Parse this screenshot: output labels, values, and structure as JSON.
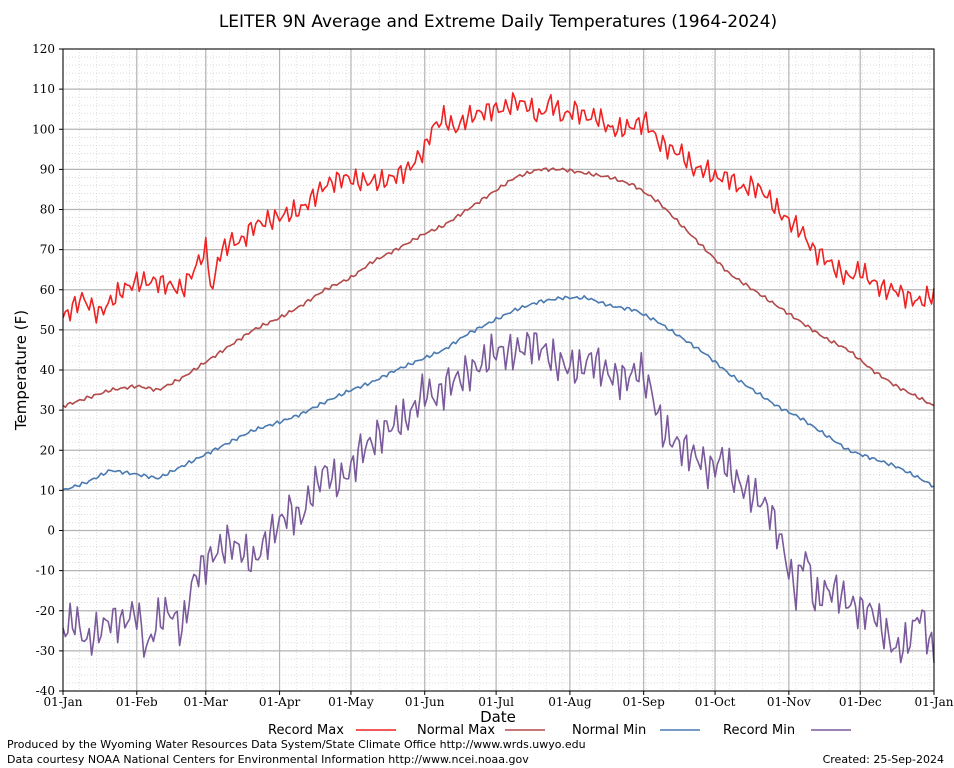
{
  "chart_data": {
    "type": "line",
    "title": "LEITER 9N Average and Extreme Daily Temperatures (1964-2024)",
    "xlabel": "Date",
    "ylabel": "Temperature (F)",
    "ylim": [
      -40,
      120
    ],
    "xlim": [
      0,
      366
    ],
    "grid": true,
    "legend_position": "bottom",
    "y_ticks": [
      "120",
      "110",
      "100",
      "90",
      "80",
      "70",
      "60",
      "50",
      "40",
      "30",
      "20",
      "10",
      "0",
      "-10",
      "-20",
      "-30",
      "-40"
    ],
    "y_tick_values": [
      120,
      110,
      100,
      90,
      80,
      70,
      60,
      50,
      40,
      30,
      20,
      10,
      0,
      -10,
      -20,
      -30,
      -40
    ],
    "x_tick_labels": [
      "01-Jan",
      "01-Feb",
      "01-Mar",
      "01-Apr",
      "01-May",
      "01-Jun",
      "01-Jul",
      "01-Aug",
      "01-Sep",
      "01-Oct",
      "01-Nov",
      "01-Dec",
      "01-Jan"
    ],
    "x_tick_days": [
      0,
      31,
      60,
      91,
      121,
      152,
      182,
      213,
      244,
      274,
      305,
      335,
      366
    ],
    "series": [
      {
        "name": "Record Max",
        "color": "#ee2222",
        "x": [
          0,
          8,
          15,
          25,
          31,
          40,
          50,
          55,
          60,
          63,
          65,
          70,
          75,
          80,
          90,
          100,
          110,
          118,
          125,
          135,
          145,
          152,
          155,
          160,
          165,
          170,
          175,
          180,
          185,
          190,
          195,
          200,
          205,
          210,
          215,
          220,
          225,
          230,
          235,
          240,
          245,
          250,
          255,
          260,
          265,
          270,
          274,
          280,
          285,
          290,
          295,
          300,
          305,
          310,
          315,
          320,
          325,
          330,
          335,
          340,
          345,
          350,
          355,
          360,
          366
        ],
        "values": [
          53,
          58,
          54,
          60,
          62,
          62,
          60,
          65,
          70,
          59,
          68,
          72,
          72,
          76,
          78,
          80,
          86,
          88,
          87,
          87,
          90,
          95,
          100,
          103,
          100,
          103,
          104,
          105,
          105,
          107,
          106,
          103,
          107,
          103,
          105,
          103,
          103,
          100,
          100,
          101,
          102,
          97,
          95,
          94,
          90,
          90,
          88,
          88,
          85,
          86,
          84,
          80,
          77,
          75,
          70,
          68,
          65,
          63,
          65,
          62,
          60,
          60,
          58,
          57,
          59
        ]
      },
      {
        "name": "Normal Max",
        "color": "#b24a4a",
        "x": [
          0,
          10,
          20,
          31,
          40,
          50,
          60,
          70,
          80,
          91,
          100,
          110,
          121,
          130,
          140,
          152,
          160,
          170,
          180,
          190,
          200,
          210,
          220,
          230,
          240,
          250,
          260,
          270,
          280,
          290,
          300,
          310,
          320,
          330,
          340,
          350,
          360,
          366
        ],
        "values": [
          31,
          33,
          35,
          36,
          35,
          38,
          42,
          46,
          50,
          53,
          56,
          60,
          63,
          67,
          70,
          74,
          76,
          80,
          84,
          88,
          90,
          90,
          89,
          88,
          86,
          82,
          76,
          70,
          64,
          60,
          56,
          52,
          48,
          45,
          40,
          36,
          33,
          31
        ]
      },
      {
        "name": "Normal Min",
        "color": "#4a7ab0",
        "x": [
          0,
          10,
          20,
          31,
          40,
          50,
          60,
          70,
          80,
          91,
          100,
          110,
          121,
          130,
          140,
          152,
          160,
          170,
          180,
          190,
          200,
          210,
          220,
          230,
          240,
          250,
          260,
          270,
          280,
          290,
          300,
          310,
          320,
          330,
          340,
          350,
          360,
          366
        ],
        "values": [
          10,
          12,
          15,
          14,
          13,
          16,
          19,
          22,
          25,
          27,
          29,
          32,
          35,
          37,
          40,
          43,
          45,
          49,
          52,
          55,
          57,
          58,
          58,
          56,
          55,
          52,
          48,
          44,
          39,
          35,
          31,
          28,
          24,
          20,
          18,
          16,
          13,
          11
        ]
      },
      {
        "name": "Record Min",
        "color": "#7a5a9a",
        "x": [
          0,
          5,
          10,
          15,
          20,
          25,
          31,
          35,
          40,
          45,
          50,
          55,
          60,
          65,
          70,
          75,
          80,
          85,
          91,
          95,
          100,
          105,
          110,
          115,
          121,
          125,
          130,
          135,
          140,
          145,
          152,
          157,
          162,
          167,
          172,
          177,
          182,
          187,
          192,
          197,
          202,
          207,
          212,
          217,
          222,
          227,
          232,
          237,
          242,
          247,
          252,
          257,
          262,
          267,
          272,
          277,
          282,
          287,
          292,
          297,
          302,
          305,
          308,
          312,
          316,
          320,
          325,
          330,
          335,
          340,
          345,
          350,
          355,
          360,
          366
        ],
        "values": [
          -25,
          -22,
          -28,
          -25,
          -22,
          -23,
          -20,
          -30,
          -22,
          -20,
          -25,
          -12,
          -8,
          -5,
          -3,
          -5,
          -8,
          -3,
          2,
          5,
          3,
          10,
          15,
          12,
          15,
          20,
          22,
          25,
          27,
          28,
          35,
          33,
          37,
          38,
          40,
          42,
          45,
          44,
          45,
          47,
          45,
          42,
          41,
          40,
          43,
          40,
          38,
          38,
          40,
          35,
          25,
          22,
          20,
          18,
          15,
          18,
          13,
          10,
          8,
          5,
          -3,
          -10,
          -15,
          -5,
          -18,
          -15,
          -15,
          -18,
          -20,
          -20,
          -25,
          -30,
          -28,
          -20,
          -31
        ]
      }
    ]
  },
  "footer": {
    "producer": "Produced by the Wyoming Water Resources Data System/State Climate Office http://www.wrds.uwyo.edu",
    "courtesy": "Data courtesy NOAA National Centers for Environmental Information http://www.ncei.noaa.gov",
    "created": "Created:  25-Sep-2024"
  }
}
